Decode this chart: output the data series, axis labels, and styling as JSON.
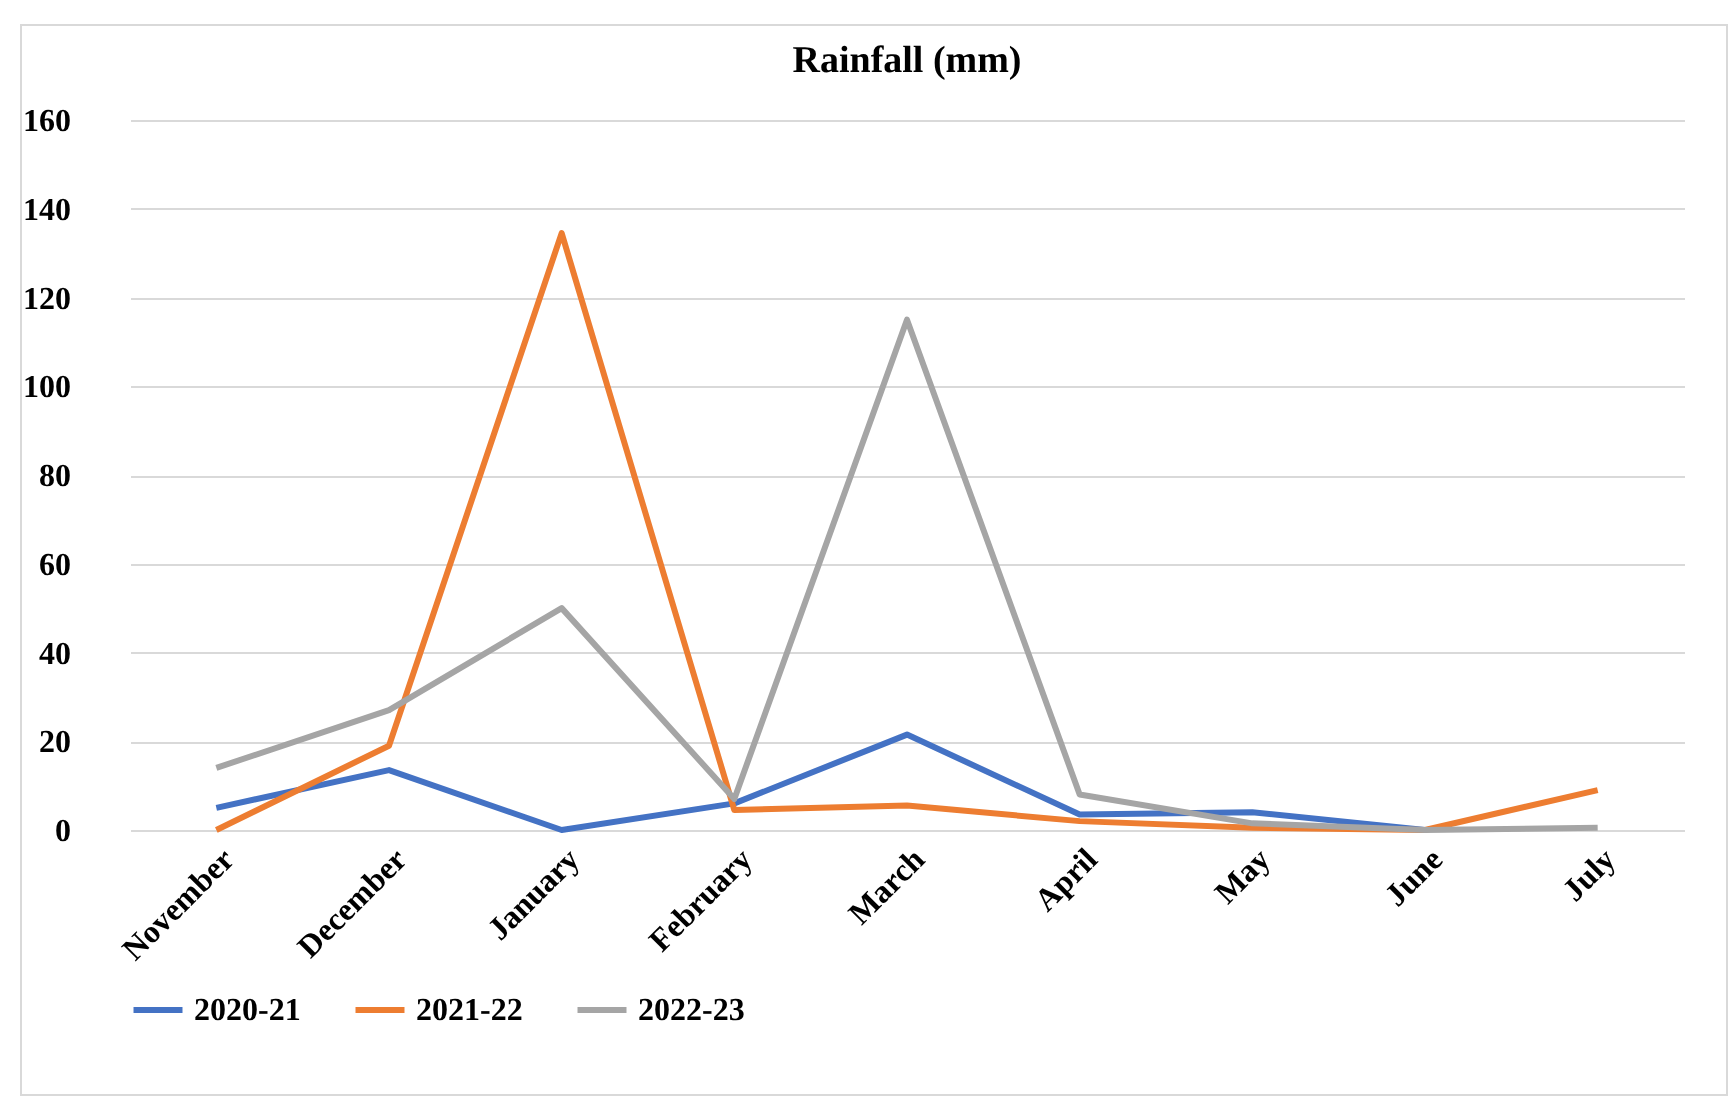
{
  "chart_data": {
    "type": "line",
    "title": "Rainfall (mm)",
    "categories": [
      "November",
      "December",
      "January",
      "February",
      "March",
      "April",
      "May",
      "June",
      "July"
    ],
    "series": [
      {
        "name": "2020-21",
        "color": "#4472c4",
        "values": [
          5,
          13.5,
          0,
          6,
          21.5,
          3.5,
          4,
          0,
          null
        ]
      },
      {
        "name": "2021-22",
        "color": "#ed7d31",
        "values": [
          0,
          19,
          134.5,
          4.5,
          5.5,
          2,
          0.5,
          0,
          9
        ]
      },
      {
        "name": "2022-23",
        "color": "#a5a5a5",
        "values": [
          14,
          27,
          50,
          7,
          115,
          8,
          1.5,
          0,
          0.5
        ]
      }
    ],
    "ylim": [
      0,
      160
    ],
    "yticks": [
      0,
      20,
      40,
      60,
      80,
      100,
      120,
      140,
      160
    ],
    "grid": "y",
    "legend": "bottom",
    "marker": "none",
    "line_style": "solid"
  }
}
